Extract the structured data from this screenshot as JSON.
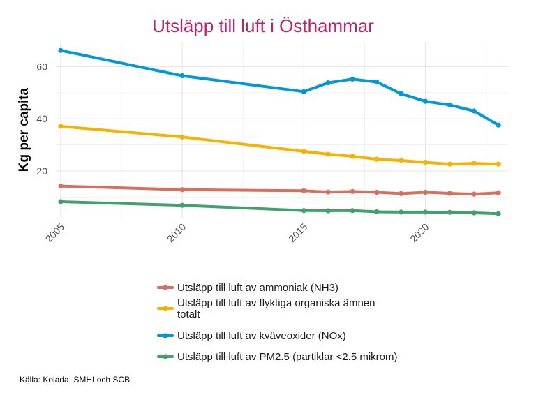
{
  "chart_data": {
    "type": "line",
    "title": "Utsläpp till luft i Östhammar",
    "xlabel": "",
    "ylabel": "Kg per capita",
    "xlim": [
      2004.8,
      2023.4
    ],
    "ylim": [
      1.5,
      69.5
    ],
    "x_ticks": [
      2005,
      2010,
      2015,
      2020
    ],
    "y_ticks": [
      20,
      40,
      60
    ],
    "grid": true,
    "legend_position": "bottom",
    "series": [
      {
        "name": "Utsläpp till luft av ammoniak (NH3)",
        "legend_lines": [
          "Utsläpp till luft av ammoniak (NH3)"
        ],
        "color": "#D5705F",
        "x": [
          2005,
          2010,
          2015,
          2016,
          2017,
          2018,
          2019,
          2020,
          2021,
          2022,
          2023
        ],
        "y": [
          14.2,
          12.8,
          12.4,
          11.9,
          12.1,
          11.8,
          11.3,
          11.8,
          11.4,
          11.1,
          11.6
        ]
      },
      {
        "name": "Utsläpp till luft av flyktiga organiska ämnen totalt",
        "legend_lines": [
          "Utsläpp till luft av flyktiga organiska ämnen",
          "totalt"
        ],
        "color": "#F5B200",
        "x": [
          2005,
          2010,
          2015,
          2016,
          2017,
          2018,
          2019,
          2020,
          2021,
          2022,
          2023
        ],
        "y": [
          37.1,
          33.0,
          27.5,
          26.4,
          25.6,
          24.5,
          24.0,
          23.3,
          22.6,
          22.9,
          22.6
        ]
      },
      {
        "name": "Utsläpp till luft av kväveoxider (NOx)",
        "legend_lines": [
          "Utsläpp till luft av kväveoxider (NOx)"
        ],
        "color": "#0099D6",
        "x": [
          2005,
          2010,
          2015,
          2016,
          2017,
          2018,
          2019,
          2020,
          2021,
          2022,
          2023
        ],
        "y": [
          66.2,
          56.5,
          50.4,
          53.8,
          55.2,
          54.1,
          49.6,
          46.7,
          45.3,
          43.0,
          37.6
        ]
      },
      {
        "name": "Utsläpp till luft av PM2.5 (partiklar <2.5 mikrom)",
        "legend_lines": [
          "Utsläpp till luft av PM2.5 (partiklar <2.5 mikrom)"
        ],
        "color": "#42A06E",
        "x": [
          2005,
          2010,
          2015,
          2016,
          2017,
          2018,
          2019,
          2020,
          2021,
          2022,
          2023
        ],
        "y": [
          8.2,
          6.8,
          4.8,
          4.7,
          4.8,
          4.3,
          4.2,
          4.2,
          4.1,
          3.9,
          3.6
        ]
      }
    ]
  },
  "title_color": "#B5256A",
  "source_text": "Källa: Kolada, SMHI och SCB"
}
